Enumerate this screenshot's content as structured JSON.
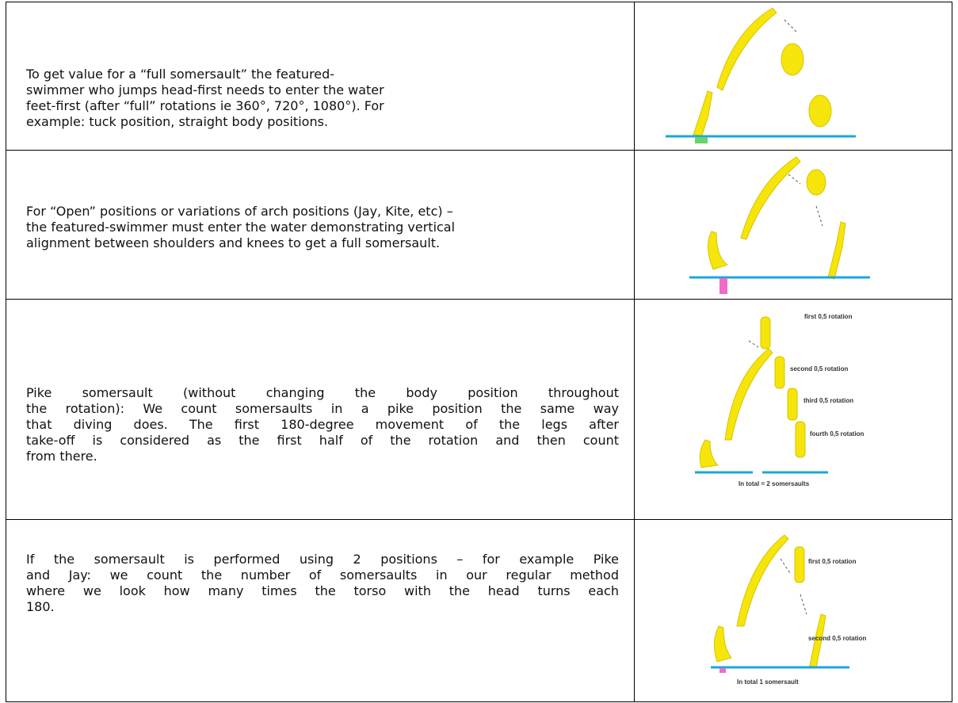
{
  "table": {
    "rows": [
      {
        "text": [
          "To get value for a “full somersault” the featured-",
          "swimmer who jumps head-first needs to enter the water",
          "feet-first (after “full” rotations ie 360°, 720°, 1080°). For",
          "example: tuck position, straight body positions."
        ]
      },
      {
        "text": [
          "For “Open” positions or variations of arch positions (Jay, Kite, etc) –",
          "the featured-swimmer must enter the water demonstrating vertical",
          "alignment between shoulders and knees to get a full somersault."
        ]
      },
      {
        "text": [
          "Pike somersault (without changing the body position throughout",
          "the rotation): We count somersaults in a pike position the same way",
          "that diving does. The first 180-degree movement of the legs after",
          "take-off is considered as the first half of the rotation and then count",
          "from there."
        ],
        "figure_labels": [
          "first 0,5 rotation",
          "second 0,5 rotation",
          "third 0,5 rotation",
          "fourth 0,5 rotation",
          "In total = 2 somersaults"
        ]
      },
      {
        "text": [
          "If the somersault is performed using 2 positions – for example Pike",
          "and Jay: we count the number of somersaults in our regular method",
          "where we look how many times the torso with the head turns each",
          "180."
        ],
        "figure_labels": [
          "first 0,5 rotation",
          "second 0,5 rotation",
          "In total 1 somersault"
        ]
      }
    ]
  }
}
